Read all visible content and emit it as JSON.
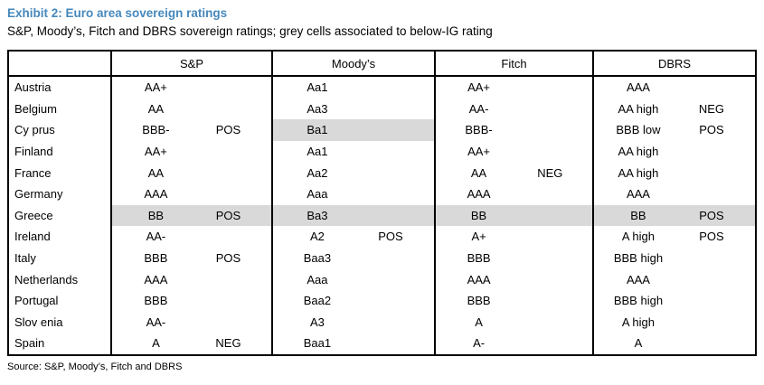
{
  "header": {
    "title": "Exhibit 2: Euro area sovereign ratings",
    "subtitle": "S&P, Moody’s, Fitch and DBRS sovereign ratings; grey cells associated to below-IG rating",
    "title_color": "#4688bc"
  },
  "table": {
    "agency_columns": [
      "S&P",
      "Moody’s",
      "Fitch",
      "DBRS"
    ],
    "grey_cell_color": "#d9d9d9",
    "rows": [
      {
        "country": "Austria",
        "cells": [
          {
            "rating": "AA+",
            "outlook": "",
            "grey": false
          },
          {
            "rating": "Aa1",
            "outlook": "",
            "grey": false
          },
          {
            "rating": "AA+",
            "outlook": "",
            "grey": false
          },
          {
            "rating": "AAA",
            "outlook": "",
            "grey": false
          }
        ]
      },
      {
        "country": "Belgium",
        "cells": [
          {
            "rating": "AA",
            "outlook": "",
            "grey": false
          },
          {
            "rating": "Aa3",
            "outlook": "",
            "grey": false
          },
          {
            "rating": "AA-",
            "outlook": "",
            "grey": false
          },
          {
            "rating": "AA high",
            "outlook": "NEG",
            "grey": false
          }
        ]
      },
      {
        "country": "Cy prus",
        "cells": [
          {
            "rating": "BBB-",
            "outlook": "POS",
            "grey": false
          },
          {
            "rating": "Ba1",
            "outlook": "",
            "grey": true
          },
          {
            "rating": "BBB-",
            "outlook": "",
            "grey": false
          },
          {
            "rating": "BBB low",
            "outlook": "POS",
            "grey": false
          }
        ]
      },
      {
        "country": "Finland",
        "cells": [
          {
            "rating": "AA+",
            "outlook": "",
            "grey": false
          },
          {
            "rating": "Aa1",
            "outlook": "",
            "grey": false
          },
          {
            "rating": "AA+",
            "outlook": "",
            "grey": false
          },
          {
            "rating": "AA high",
            "outlook": "",
            "grey": false
          }
        ]
      },
      {
        "country": "France",
        "cells": [
          {
            "rating": "AA",
            "outlook": "",
            "grey": false
          },
          {
            "rating": "Aa2",
            "outlook": "",
            "grey": false
          },
          {
            "rating": "AA",
            "outlook": "NEG",
            "grey": false
          },
          {
            "rating": "AA high",
            "outlook": "",
            "grey": false
          }
        ]
      },
      {
        "country": "Germany",
        "cells": [
          {
            "rating": "AAA",
            "outlook": "",
            "grey": false
          },
          {
            "rating": "Aaa",
            "outlook": "",
            "grey": false
          },
          {
            "rating": "AAA",
            "outlook": "",
            "grey": false
          },
          {
            "rating": "AAA",
            "outlook": "",
            "grey": false
          }
        ]
      },
      {
        "country": "Greece",
        "cells": [
          {
            "rating": "BB",
            "outlook": "POS",
            "grey": true
          },
          {
            "rating": "Ba3",
            "outlook": "",
            "grey": true
          },
          {
            "rating": "BB",
            "outlook": "",
            "grey": true
          },
          {
            "rating": "BB",
            "outlook": "POS",
            "grey": true
          }
        ]
      },
      {
        "country": "Ireland",
        "cells": [
          {
            "rating": "AA-",
            "outlook": "",
            "grey": false
          },
          {
            "rating": "A2",
            "outlook": "POS",
            "grey": false
          },
          {
            "rating": "A+",
            "outlook": "",
            "grey": false
          },
          {
            "rating": "A high",
            "outlook": "POS",
            "grey": false
          }
        ]
      },
      {
        "country": "Italy",
        "cells": [
          {
            "rating": "BBB",
            "outlook": "POS",
            "grey": false
          },
          {
            "rating": "Baa3",
            "outlook": "",
            "grey": false
          },
          {
            "rating": "BBB",
            "outlook": "",
            "grey": false
          },
          {
            "rating": "BBB high",
            "outlook": "",
            "grey": false
          }
        ]
      },
      {
        "country": "Netherlands",
        "cells": [
          {
            "rating": "AAA",
            "outlook": "",
            "grey": false
          },
          {
            "rating": "Aaa",
            "outlook": "",
            "grey": false
          },
          {
            "rating": "AAA",
            "outlook": "",
            "grey": false
          },
          {
            "rating": "AAA",
            "outlook": "",
            "grey": false
          }
        ]
      },
      {
        "country": "Portugal",
        "cells": [
          {
            "rating": "BBB",
            "outlook": "",
            "grey": false
          },
          {
            "rating": "Baa2",
            "outlook": "",
            "grey": false
          },
          {
            "rating": "BBB",
            "outlook": "",
            "grey": false
          },
          {
            "rating": "BBB high",
            "outlook": "",
            "grey": false
          }
        ]
      },
      {
        "country": "Slov enia",
        "cells": [
          {
            "rating": "AA-",
            "outlook": "",
            "grey": false
          },
          {
            "rating": "A3",
            "outlook": "",
            "grey": false
          },
          {
            "rating": "A",
            "outlook": "",
            "grey": false
          },
          {
            "rating": "A high",
            "outlook": "",
            "grey": false
          }
        ]
      },
      {
        "country": "Spain",
        "cells": [
          {
            "rating": "A",
            "outlook": "NEG",
            "grey": false
          },
          {
            "rating": "Baa1",
            "outlook": "",
            "grey": false
          },
          {
            "rating": "A-",
            "outlook": "",
            "grey": false
          },
          {
            "rating": "A",
            "outlook": "",
            "grey": false
          }
        ]
      }
    ]
  },
  "footer": {
    "source": "Source: S&P, Moody’s, Fitch and DBRS"
  }
}
